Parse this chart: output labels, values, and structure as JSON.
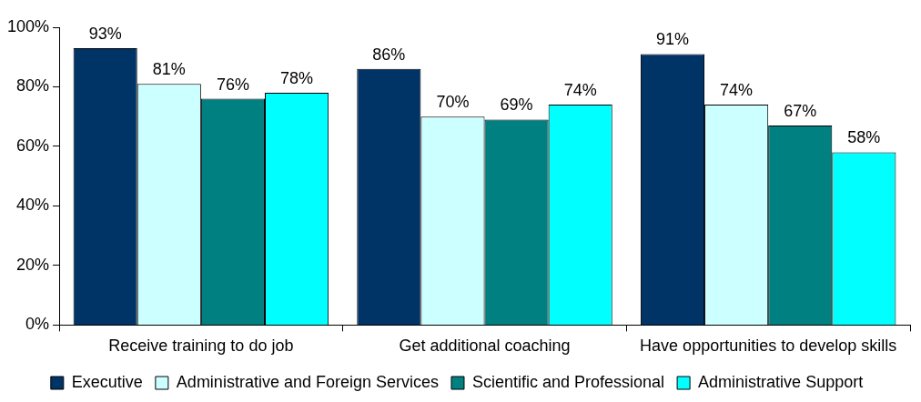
{
  "chart_data": {
    "type": "bar",
    "categories": [
      "Receive training to do job",
      "Get additional coaching",
      "Have opportunities to develop skills"
    ],
    "series": [
      {
        "name": "Executive",
        "color": "#003366",
        "values": [
          93,
          86,
          91
        ],
        "value_labels": [
          "93%",
          "86%",
          "91%"
        ]
      },
      {
        "name": "Administrative and Foreign Services",
        "color": "#ccffff",
        "values": [
          81,
          70,
          74
        ],
        "value_labels": [
          "81%",
          "70%",
          "74%"
        ]
      },
      {
        "name": "Scientific and Professional",
        "color": "#008080",
        "values": [
          76,
          69,
          67
        ],
        "value_labels": [
          "76%",
          "69%",
          "67%"
        ]
      },
      {
        "name": "Administrative Support",
        "color": "#00ffff",
        "values": [
          78,
          74,
          58
        ],
        "value_labels": [
          "78%",
          "74%",
          "58%"
        ]
      }
    ],
    "ylim": [
      0,
      100
    ],
    "yticks": [
      {
        "value": 0,
        "label": "0%"
      },
      {
        "value": 20,
        "label": "20%"
      },
      {
        "value": 40,
        "label": "40%"
      },
      {
        "value": 60,
        "label": "60%"
      },
      {
        "value": 80,
        "label": "80%"
      },
      {
        "value": 100,
        "label": "100%"
      }
    ],
    "grid": false,
    "legend": "bottom"
  }
}
